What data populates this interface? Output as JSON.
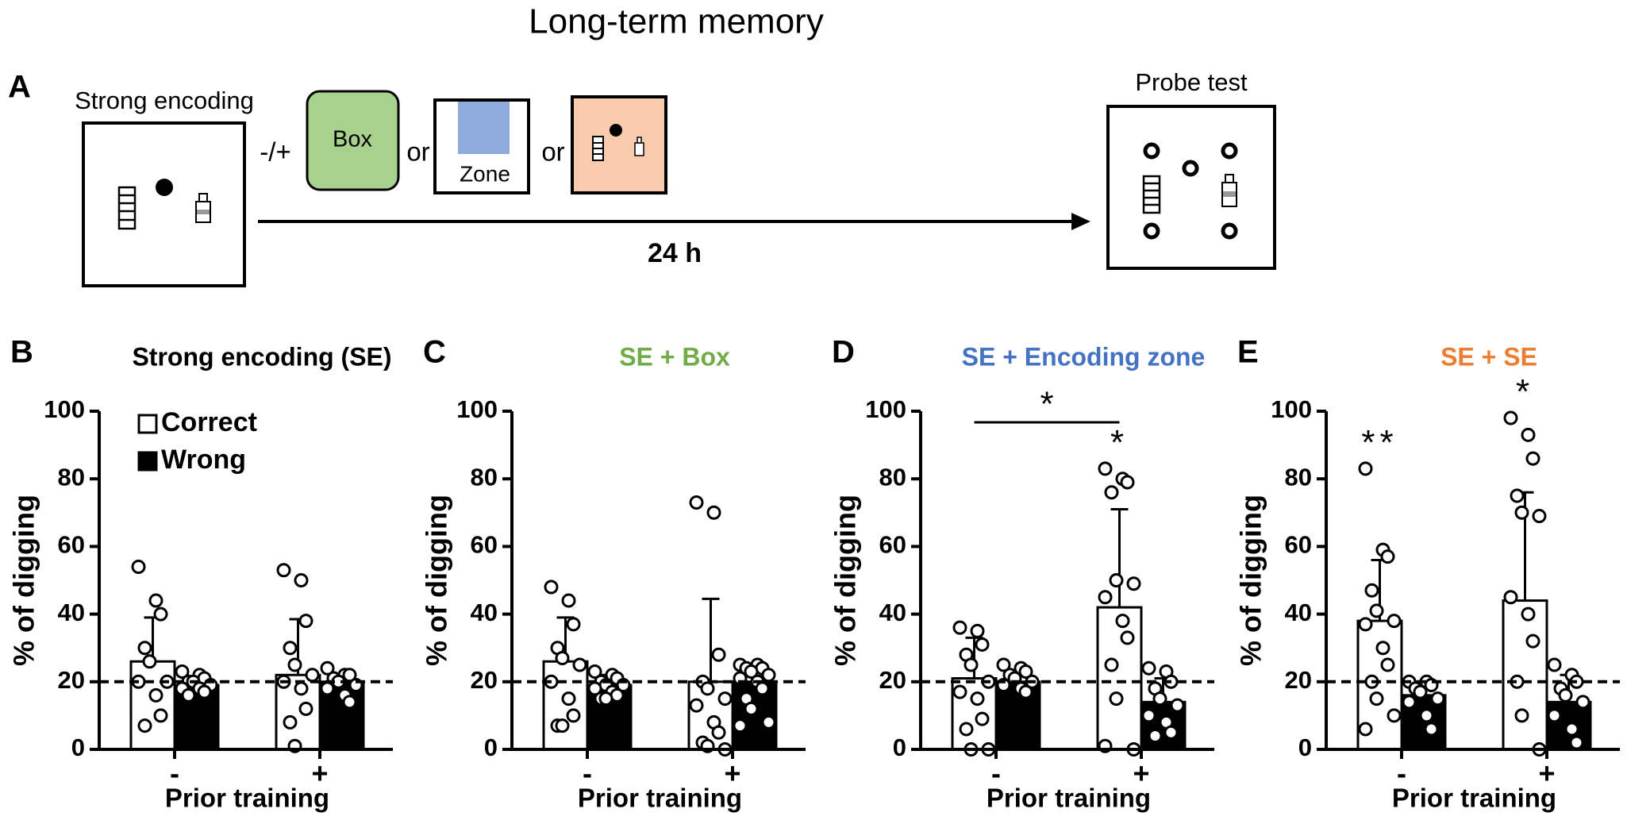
{
  "title": "Long-term memory",
  "panel_a": {
    "label": "A",
    "encoding_label": "Strong encoding",
    "condition_sign": "-/+",
    "box_label": "Box",
    "or_1": "or",
    "zone_label": "Zone",
    "or_2": "or",
    "delay": "24 h",
    "probe_label": "Probe test"
  },
  "chart_data": [
    {
      "type": "bar",
      "panel_label": "B",
      "title": "Strong encoding (SE)",
      "title_color": "#000000",
      "xlabel": "Prior training",
      "ylabel": "% of digging",
      "categories": [
        "-",
        "+"
      ],
      "ylim": [
        0,
        100
      ],
      "yticks": [
        0,
        20,
        40,
        60,
        80,
        100
      ],
      "reference_line": 20,
      "legend": true,
      "series": [
        {
          "name": "Correct",
          "color": "#ffffff",
          "values": [
            26,
            22
          ],
          "errors": [
            13,
            16.5
          ],
          "points": [
            [
              54,
              44,
              40,
              30,
              26,
              20,
              20,
              16,
              10,
              7
            ],
            [
              53,
              50,
              38,
              30,
              25,
              22,
              20,
              18,
              12,
              8,
              1
            ]
          ]
        },
        {
          "name": "Wrong",
          "color": "#000000",
          "values": [
            19,
            20
          ],
          "errors": [
            2,
            2
          ],
          "points": [
            [
              23,
              22,
              21,
              20,
              20,
              19,
              18,
              18,
              17,
              16
            ],
            [
              24,
              22,
              22,
              21,
              20,
              19,
              18,
              16,
              14
            ]
          ]
        }
      ],
      "significance": []
    },
    {
      "type": "bar",
      "panel_label": "C",
      "title": "SE + Box",
      "title_color": "#70ad47",
      "xlabel": "Prior training",
      "ylabel": "% of digging",
      "categories": [
        "-",
        "+"
      ],
      "ylim": [
        0,
        100
      ],
      "yticks": [
        0,
        20,
        40,
        60,
        80,
        100
      ],
      "reference_line": 20,
      "legend": false,
      "series": [
        {
          "name": "Correct",
          "color": "#ffffff",
          "values": [
            26,
            20
          ],
          "errors": [
            13,
            24.5
          ],
          "points": [
            [
              48,
              44,
              37,
              30,
              27,
              25,
              20,
              15,
              10,
              7,
              7
            ],
            [
              73,
              70,
              28,
              20,
              18,
              15,
              13,
              8,
              5,
              2,
              1,
              0
            ]
          ]
        },
        {
          "name": "Wrong",
          "color": "#000000",
          "values": [
            19,
            20
          ],
          "errors": [
            3,
            3
          ],
          "points": [
            [
              23,
              22,
              21,
              20,
              19,
              19,
              18,
              17,
              16,
              15,
              15
            ],
            [
              25,
              25,
              24,
              24,
              23,
              22,
              21,
              20,
              18,
              15,
              12,
              8,
              7
            ]
          ]
        }
      ],
      "significance": []
    },
    {
      "type": "bar",
      "panel_label": "D",
      "title": "SE + Encoding zone",
      "title_color": "#4472c4",
      "xlabel": "Prior training",
      "ylabel": "% of digging",
      "categories": [
        "-",
        "+"
      ],
      "ylim": [
        0,
        100
      ],
      "yticks": [
        0,
        20,
        40,
        60,
        80,
        100
      ],
      "reference_line": 20,
      "legend": false,
      "series": [
        {
          "name": "Correct",
          "color": "#ffffff",
          "values": [
            21,
            42
          ],
          "errors": [
            12,
            29
          ],
          "points": [
            [
              36,
              35,
              31,
              28,
              25,
              20,
              17,
              15,
              9,
              6,
              0,
              0
            ],
            [
              83,
              80,
              79,
              76,
              50,
              49,
              45,
              38,
              33,
              25,
              15,
              0,
              1
            ]
          ]
        },
        {
          "name": "Wrong",
          "color": "#000000",
          "values": [
            20,
            14
          ],
          "errors": [
            3,
            7
          ],
          "points": [
            [
              25,
              24,
              23,
              22,
              21,
              20,
              19,
              18,
              17
            ],
            [
              24,
              23,
              20,
              18,
              15,
              13,
              10,
              8,
              5,
              4
            ]
          ]
        }
      ],
      "significance": [
        {
          "label": "*",
          "between": [
            "-",
            "+"
          ]
        },
        {
          "label": "*",
          "over": "+"
        }
      ]
    },
    {
      "type": "bar",
      "panel_label": "E",
      "title": "SE + SE",
      "title_color": "#ed7d31",
      "xlabel": "Prior training",
      "ylabel": "% of digging",
      "categories": [
        "-",
        "+"
      ],
      "ylim": [
        0,
        100
      ],
      "yticks": [
        0,
        20,
        40,
        60,
        80,
        100
      ],
      "reference_line": 20,
      "legend": false,
      "series": [
        {
          "name": "Correct",
          "color": "#ffffff",
          "values": [
            38,
            44
          ],
          "errors": [
            18,
            32
          ],
          "points": [
            [
              83,
              59,
              57,
              47,
              41,
              38,
              37,
              30,
              25,
              20,
              15,
              10,
              6
            ],
            [
              98,
              93,
              86,
              75,
              70,
              69,
              45,
              40,
              32,
              20,
              10,
              0
            ]
          ]
        },
        {
          "name": "Wrong",
          "color": "#000000",
          "values": [
            16,
            14
          ],
          "errors": [
            4,
            8
          ],
          "points": [
            [
              20,
              20,
              19,
              18,
              17,
              15,
              14,
              10,
              6
            ],
            [
              25,
              22,
              20,
              18,
              16,
              14,
              10,
              6,
              2
            ]
          ]
        }
      ],
      "significance": [
        {
          "label": "**",
          "over": "-"
        },
        {
          "label": "*",
          "over": "+"
        }
      ]
    }
  ]
}
